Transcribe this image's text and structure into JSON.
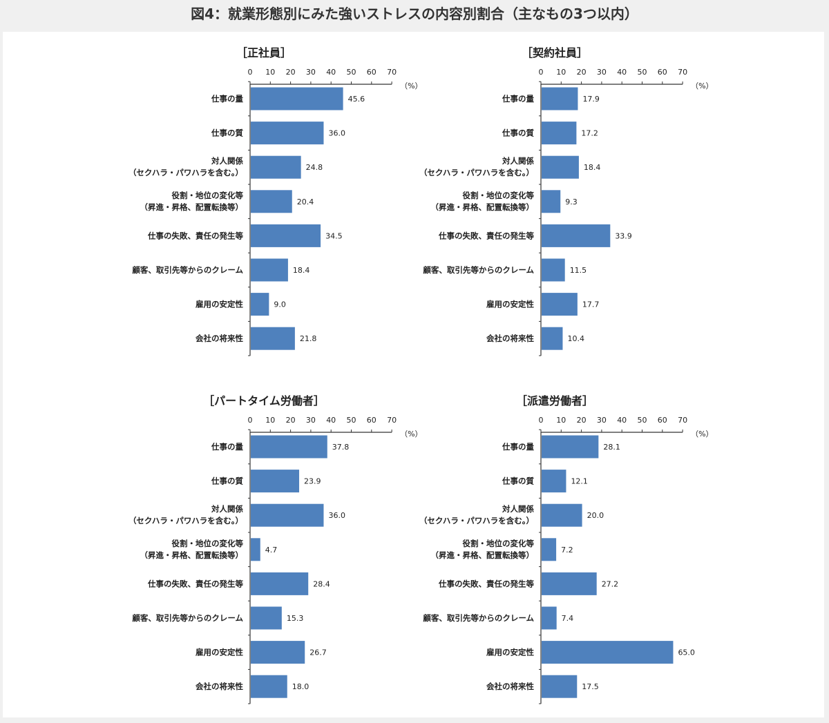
{
  "page_title": "図4：就業形態別にみた強いストレスの内容別割合（主なもの3つ以内）",
  "colors": {
    "bar": "#4f81bd",
    "background": "#f0f0f0",
    "panel": "#ffffff"
  },
  "chart_data": [
    {
      "type": "bar",
      "orientation": "horizontal",
      "title": "［正社員］",
      "unit": "（%）",
      "xlim": [
        0,
        70
      ],
      "xticks": [
        0,
        10,
        20,
        30,
        40,
        50,
        60,
        70
      ],
      "categories": [
        [
          "仕事の量"
        ],
        [
          "仕事の質"
        ],
        [
          "対人関係",
          "（セクハラ・パワハラを含む。）"
        ],
        [
          "役割・地位の変化等",
          "（昇進・昇格、配置転換等）"
        ],
        [
          "仕事の失敗、責任の発生等"
        ],
        [
          "顧客、取引先等からのクレーム"
        ],
        [
          "雇用の安定性"
        ],
        [
          "会社の将来性"
        ]
      ],
      "values": [
        45.6,
        36.0,
        24.8,
        20.4,
        34.5,
        18.4,
        9.0,
        21.8
      ],
      "labels": [
        "45.6",
        "36.0",
        "24.8",
        "20.4",
        "34.5",
        "18.4",
        "9.0",
        "21.8"
      ]
    },
    {
      "type": "bar",
      "orientation": "horizontal",
      "title": "［契約社員］",
      "unit": "（%）",
      "xlim": [
        0,
        70
      ],
      "xticks": [
        0,
        10,
        20,
        30,
        40,
        50,
        60,
        70
      ],
      "categories": [
        [
          "仕事の量"
        ],
        [
          "仕事の質"
        ],
        [
          "対人関係",
          "（セクハラ・パワハラを含む。）"
        ],
        [
          "役割・地位の変化等",
          "（昇進・昇格、配置転換等）"
        ],
        [
          "仕事の失敗、責任の発生等"
        ],
        [
          "顧客、取引先等からのクレーム"
        ],
        [
          "雇用の安定性"
        ],
        [
          "会社の将来性"
        ]
      ],
      "values": [
        17.9,
        17.2,
        18.4,
        9.3,
        33.9,
        11.5,
        17.7,
        10.4
      ],
      "labels": [
        "17.9",
        "17.2",
        "18.4",
        "9.3",
        "33.9",
        "11.5",
        "17.7",
        "10.4"
      ]
    },
    {
      "type": "bar",
      "orientation": "horizontal",
      "title": "［パートタイム労働者］",
      "unit": "（%）",
      "xlim": [
        0,
        70
      ],
      "xticks": [
        0,
        10,
        20,
        30,
        40,
        50,
        60,
        70
      ],
      "categories": [
        [
          "仕事の量"
        ],
        [
          "仕事の質"
        ],
        [
          "対人関係",
          "（セクハラ・パワハラを含む。）"
        ],
        [
          "役割・地位の変化等",
          "（昇進・昇格、配置転換等）"
        ],
        [
          "仕事の失敗、責任の発生等"
        ],
        [
          "顧客、取引先等からのクレーム"
        ],
        [
          "雇用の安定性"
        ],
        [
          "会社の将来性"
        ]
      ],
      "values": [
        37.8,
        23.9,
        36.0,
        4.7,
        28.4,
        15.3,
        26.7,
        18.0
      ],
      "labels": [
        "37.8",
        "23.9",
        "36.0",
        "4.7",
        "28.4",
        "15.3",
        "26.7",
        "18.0"
      ]
    },
    {
      "type": "bar",
      "orientation": "horizontal",
      "title": "［派遣労働者］",
      "unit": "（%）",
      "xlim": [
        0,
        70
      ],
      "xticks": [
        0,
        10,
        20,
        30,
        40,
        50,
        60,
        70
      ],
      "categories": [
        [
          "仕事の量"
        ],
        [
          "仕事の質"
        ],
        [
          "対人関係",
          "（セクハラ・パワハラを含む。）"
        ],
        [
          "役割・地位の変化等",
          "（昇進・昇格、配置転換等）"
        ],
        [
          "仕事の失敗、責任の発生等"
        ],
        [
          "顧客、取引先等からのクレーム"
        ],
        [
          "雇用の安定性"
        ],
        [
          "会社の将来性"
        ]
      ],
      "values": [
        28.1,
        12.1,
        20.0,
        7.2,
        27.2,
        7.4,
        65.0,
        17.5
      ],
      "labels": [
        "28.1",
        "12.1",
        "20.0",
        "7.2",
        "27.2",
        "7.4",
        "65.0",
        "17.5"
      ]
    }
  ]
}
